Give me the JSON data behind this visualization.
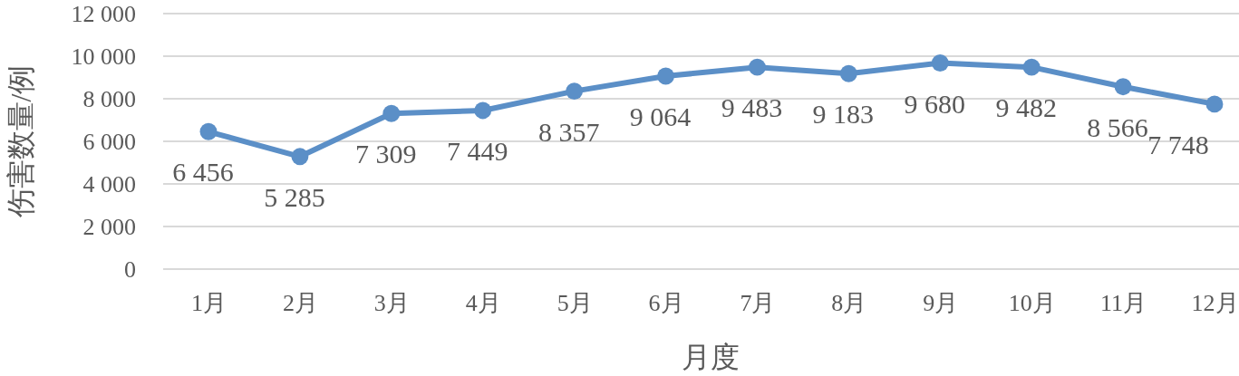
{
  "chart_data": {
    "type": "line",
    "xlabel": "月度",
    "ylabel": "伤害数量/例",
    "categories": [
      "1月",
      "2月",
      "3月",
      "4月",
      "5月",
      "6月",
      "7月",
      "8月",
      "9月",
      "10月",
      "11月",
      "12月"
    ],
    "series": [
      {
        "color": "#5b8fc7",
        "values": [
          6456,
          5285,
          7309,
          7449,
          8357,
          9064,
          9483,
          9183,
          9680,
          9482,
          8566,
          7748
        ],
        "value_labels": [
          "6 456",
          "5 285",
          "7 309",
          "7 449",
          "8 357",
          "9 064",
          "9 483",
          "9 183",
          "9 680",
          "9 482",
          "8 566",
          "7 748"
        ]
      }
    ],
    "ylim": [
      0,
      12000
    ],
    "yticks": [
      0,
      {
        "value": 2000,
        "label": "2 000"
      },
      {
        "value": 4000,
        "label": "4 000"
      },
      {
        "value": 6000,
        "label": "6 000"
      },
      {
        "value": 8000,
        "label": "8 000"
      },
      {
        "value": 10000,
        "label": "10 000"
      },
      {
        "value": 12000,
        "label": "12 000"
      }
    ],
    "grid": "y",
    "marker": "circle",
    "line_style": "solid"
  }
}
